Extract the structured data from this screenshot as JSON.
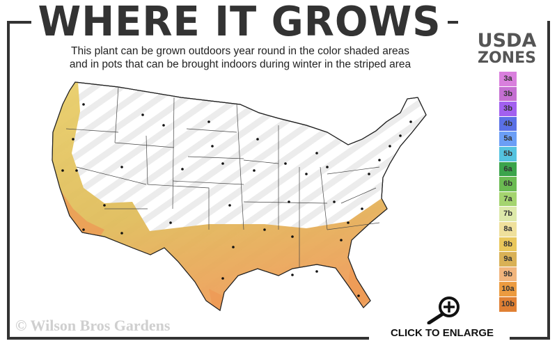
{
  "header": {
    "title": "WHERE IT GROWS",
    "subtitle_line1": "This plant can be grown outdoors year round in the color shaded areas",
    "subtitle_line2": "and in pots that can be brought indoors during winter in the striped area"
  },
  "legend": {
    "title_line1": "USDA",
    "title_line2": "ZONES",
    "zones": [
      {
        "label": "3a",
        "color": "#d97fdd"
      },
      {
        "label": "3b",
        "color": "#c56fd2"
      },
      {
        "label": "3b",
        "color": "#a260ef"
      },
      {
        "label": "4b",
        "color": "#5a70e6"
      },
      {
        "label": "5a",
        "color": "#6b9ef6"
      },
      {
        "label": "5b",
        "color": "#55c3df"
      },
      {
        "label": "6a",
        "color": "#3ba44b"
      },
      {
        "label": "6b",
        "color": "#6bbb52"
      },
      {
        "label": "7a",
        "color": "#a4d46f"
      },
      {
        "label": "7b",
        "color": "#dde9aa"
      },
      {
        "label": "8a",
        "color": "#efe09c"
      },
      {
        "label": "8b",
        "color": "#e9c75b"
      },
      {
        "label": "9a",
        "color": "#d9b156"
      },
      {
        "label": "9b",
        "color": "#f1b57d"
      },
      {
        "label": "10a",
        "color": "#ec9b40"
      },
      {
        "label": "10b",
        "color": "#e08034"
      }
    ]
  },
  "map": {
    "grow_zone_colors": [
      "#e9c75b",
      "#d9b156",
      "#f1b57d",
      "#ec9b40"
    ],
    "striped_area": "outdoors not year round - pots indoors in winter"
  },
  "footer": {
    "copyright": "© Wilson Bros Gardens",
    "enlarge_label": "CLICK TO ENLARGE"
  }
}
